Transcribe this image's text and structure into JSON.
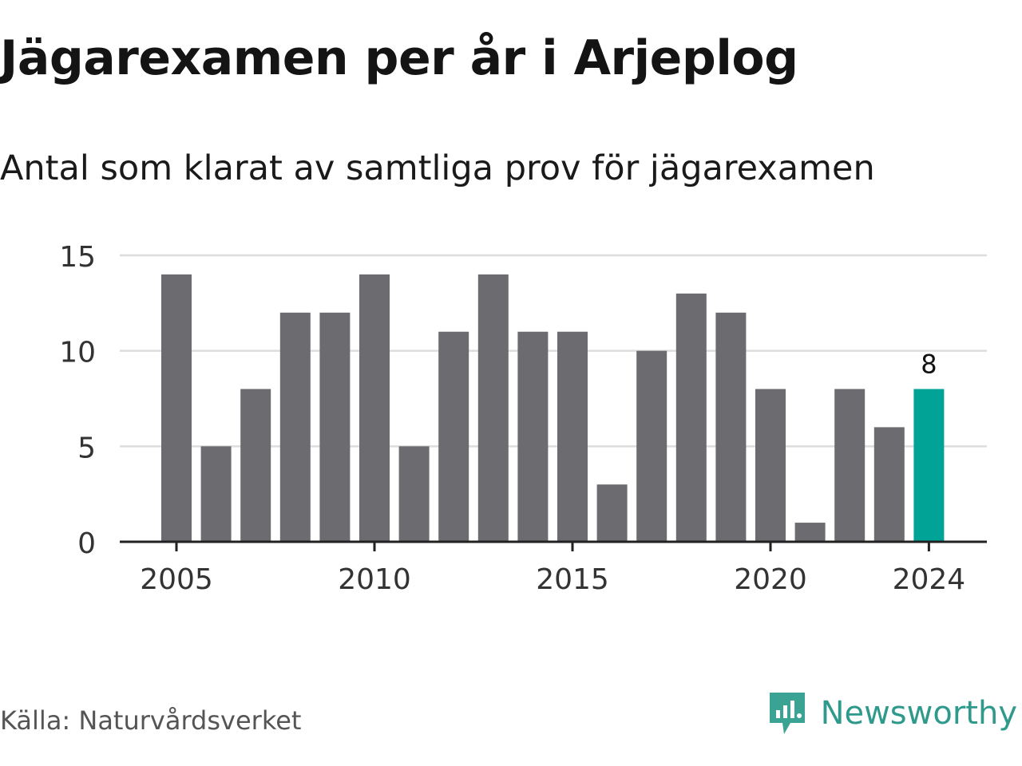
{
  "chart_data": {
    "type": "bar",
    "title": "Jägarexamen per år i Arjeplog",
    "subtitle": "Antal som klarat av samtliga prov för jägarexamen",
    "categories": [
      "2005",
      "2006",
      "2007",
      "2008",
      "2009",
      "2010",
      "2011",
      "2012",
      "2013",
      "2014",
      "2015",
      "2016",
      "2017",
      "2018",
      "2019",
      "2020",
      "2021",
      "2022",
      "2023",
      "2024"
    ],
    "values": [
      14,
      5,
      8,
      12,
      12,
      14,
      5,
      11,
      14,
      11,
      11,
      3,
      10,
      13,
      12,
      8,
      1,
      8,
      6,
      8
    ],
    "ylim": [
      0,
      15
    ],
    "yticks": [
      0,
      5,
      10,
      15
    ],
    "xticks": [
      "2005",
      "2010",
      "2015",
      "2020",
      "2024"
    ],
    "highlight": {
      "category": "2024",
      "label": "8",
      "color": "#00a396"
    },
    "bar_color": "#6b6b70",
    "grid": true,
    "legend": "none"
  },
  "footer": {
    "source": "Källa: Naturvårdsverket",
    "brand": "Newsworthy",
    "brand_icon": "newsworthy-chart-icon",
    "brand_color": "#2f9a8c"
  }
}
